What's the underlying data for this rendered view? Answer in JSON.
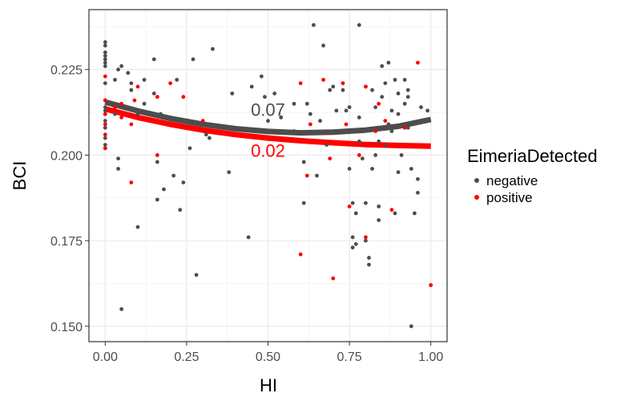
{
  "chart_data": {
    "type": "scatter",
    "xlabel": "HI",
    "ylabel": "BCI",
    "xlim": [
      -0.05,
      1.05
    ],
    "ylim": [
      0.1455,
      0.2425
    ],
    "xticks": [
      {
        "value": 0,
        "label": "0.00"
      },
      {
        "value": 0.25,
        "label": "0.25"
      },
      {
        "value": 0.5,
        "label": "0.50"
      },
      {
        "value": 0.75,
        "label": "0.75"
      },
      {
        "value": 1,
        "label": "1.00"
      }
    ],
    "yticks": [
      {
        "value": 0.15,
        "label": "0.150"
      },
      {
        "value": 0.175,
        "label": "0.175"
      },
      {
        "value": 0.2,
        "label": "0.200"
      },
      {
        "value": 0.225,
        "label": "0.225"
      }
    ],
    "grid": true,
    "legend": {
      "title": "EimeriaDetected",
      "placement": "right"
    },
    "colors": {
      "negative": "#4d4d4d",
      "positive": "#ff0000"
    },
    "series": [
      {
        "name": "negative",
        "points": [
          [
            0,
            0.233
          ],
          [
            0,
            0.232
          ],
          [
            0,
            0.23
          ],
          [
            0,
            0.229
          ],
          [
            0,
            0.228
          ],
          [
            0,
            0.227
          ],
          [
            0,
            0.226
          ],
          [
            0,
            0.221
          ],
          [
            0,
            0.216
          ],
          [
            0,
            0.214
          ],
          [
            0,
            0.213
          ],
          [
            0,
            0.212
          ],
          [
            0,
            0.21
          ],
          [
            0,
            0.208
          ],
          [
            0,
            0.205
          ],
          [
            0,
            0.203
          ],
          [
            0,
            0.202
          ],
          [
            0.02,
            0.215
          ],
          [
            0.03,
            0.212
          ],
          [
            0.03,
            0.222
          ],
          [
            0.04,
            0.225
          ],
          [
            0.04,
            0.199
          ],
          [
            0.04,
            0.196
          ],
          [
            0.05,
            0.226
          ],
          [
            0.05,
            0.155
          ],
          [
            0.07,
            0.224
          ],
          [
            0.08,
            0.219
          ],
          [
            0.08,
            0.221
          ],
          [
            0.09,
            0.213
          ],
          [
            0.1,
            0.212
          ],
          [
            0.1,
            0.179
          ],
          [
            0.12,
            0.222
          ],
          [
            0.12,
            0.215
          ],
          [
            0.15,
            0.228
          ],
          [
            0.15,
            0.218
          ],
          [
            0.16,
            0.187
          ],
          [
            0.16,
            0.198
          ],
          [
            0.17,
            0.212
          ],
          [
            0.18,
            0.19
          ],
          [
            0.21,
            0.194
          ],
          [
            0.22,
            0.222
          ],
          [
            0.23,
            0.184
          ],
          [
            0.24,
            0.192
          ],
          [
            0.26,
            0.202
          ],
          [
            0.27,
            0.228
          ],
          [
            0.28,
            0.165
          ],
          [
            0.31,
            0.206
          ],
          [
            0.32,
            0.205
          ],
          [
            0.33,
            0.231
          ],
          [
            0.38,
            0.195
          ],
          [
            0.39,
            0.218
          ],
          [
            0.44,
            0.176
          ],
          [
            0.45,
            0.22
          ],
          [
            0.48,
            0.223
          ],
          [
            0.49,
            0.217
          ],
          [
            0.5,
            0.21
          ],
          [
            0.52,
            0.218
          ],
          [
            0.54,
            0.211
          ],
          [
            0.58,
            0.215
          ],
          [
            0.58,
            0.207
          ],
          [
            0.61,
            0.198
          ],
          [
            0.61,
            0.186
          ],
          [
            0.62,
            0.215
          ],
          [
            0.63,
            0.212
          ],
          [
            0.64,
            0.238
          ],
          [
            0.65,
            0.194
          ],
          [
            0.66,
            0.21
          ],
          [
            0.67,
            0.232
          ],
          [
            0.68,
            0.203
          ],
          [
            0.69,
            0.219
          ],
          [
            0.7,
            0.22
          ],
          [
            0.71,
            0.213
          ],
          [
            0.73,
            0.219
          ],
          [
            0.75,
            0.214
          ],
          [
            0.75,
            0.196
          ],
          [
            0.76,
            0.186
          ],
          [
            0.76,
            0.176
          ],
          [
            0.76,
            0.173
          ],
          [
            0.77,
            0.183
          ],
          [
            0.77,
            0.174
          ],
          [
            0.78,
            0.211
          ],
          [
            0.78,
            0.204
          ],
          [
            0.79,
            0.199
          ],
          [
            0.8,
            0.22
          ],
          [
            0.8,
            0.186
          ],
          [
            0.8,
            0.175
          ],
          [
            0.81,
            0.17
          ],
          [
            0.81,
            0.168
          ],
          [
            0.82,
            0.219
          ],
          [
            0.82,
            0.196
          ],
          [
            0.83,
            0.214
          ],
          [
            0.83,
            0.2
          ],
          [
            0.84,
            0.204
          ],
          [
            0.84,
            0.185
          ],
          [
            0.84,
            0.181
          ],
          [
            0.85,
            0.226
          ],
          [
            0.85,
            0.217
          ],
          [
            0.86,
            0.221
          ],
          [
            0.87,
            0.227
          ],
          [
            0.88,
            0.213
          ],
          [
            0.88,
            0.207
          ],
          [
            0.89,
            0.222
          ],
          [
            0.89,
            0.183
          ],
          [
            0.9,
            0.218
          ],
          [
            0.9,
            0.212
          ],
          [
            0.9,
            0.195
          ],
          [
            0.91,
            0.2
          ],
          [
            0.92,
            0.215
          ],
          [
            0.93,
            0.219
          ],
          [
            0.93,
            0.208
          ],
          [
            0.94,
            0.196
          ],
          [
            0.94,
            0.15
          ],
          [
            0.95,
            0.183
          ],
          [
            0.96,
            0.189
          ],
          [
            0.96,
            0.193
          ],
          [
            0.97,
            0.214
          ],
          [
            0.99,
            0.213
          ],
          [
            0.78,
            0.238
          ],
          [
            0.87,
            0.209
          ],
          [
            0.92,
            0.222
          ],
          [
            0.74,
            0.213
          ],
          [
            0.86,
            0.203
          ],
          [
            0.93,
            0.217
          ]
        ]
      },
      {
        "name": "positive",
        "points": [
          [
            0,
            0.223
          ],
          [
            0,
            0.216
          ],
          [
            0,
            0.212
          ],
          [
            0,
            0.209
          ],
          [
            0,
            0.206
          ],
          [
            0,
            0.202
          ],
          [
            0.03,
            0.214
          ],
          [
            0.05,
            0.215
          ],
          [
            0.05,
            0.211
          ],
          [
            0.08,
            0.192
          ],
          [
            0.08,
            0.209
          ],
          [
            0.09,
            0.216
          ],
          [
            0.1,
            0.22
          ],
          [
            0.16,
            0.217
          ],
          [
            0.16,
            0.2
          ],
          [
            0.2,
            0.221
          ],
          [
            0.24,
            0.217
          ],
          [
            0.3,
            0.21
          ],
          [
            0.6,
            0.221
          ],
          [
            0.6,
            0.171
          ],
          [
            0.62,
            0.194
          ],
          [
            0.63,
            0.209
          ],
          [
            0.67,
            0.222
          ],
          [
            0.69,
            0.199
          ],
          [
            0.7,
            0.164
          ],
          [
            0.73,
            0.221
          ],
          [
            0.74,
            0.209
          ],
          [
            0.75,
            0.185
          ],
          [
            0.78,
            0.2
          ],
          [
            0.8,
            0.22
          ],
          [
            0.8,
            0.176
          ],
          [
            0.83,
            0.207
          ],
          [
            0.84,
            0.215
          ],
          [
            0.86,
            0.21
          ],
          [
            0.88,
            0.184
          ],
          [
            0.92,
            0.208
          ],
          [
            0.96,
            0.227
          ],
          [
            1,
            0.162
          ]
        ]
      }
    ],
    "fits": [
      {
        "name": "negative",
        "curve": [
          [
            0,
            0.2155
          ],
          [
            0.1,
            0.2129
          ],
          [
            0.2,
            0.2107
          ],
          [
            0.3,
            0.209
          ],
          [
            0.4,
            0.2077
          ],
          [
            0.5,
            0.2069
          ],
          [
            0.6,
            0.2065
          ],
          [
            0.7,
            0.2067
          ],
          [
            0.8,
            0.2073
          ],
          [
            0.9,
            0.2084
          ],
          [
            1,
            0.2104
          ]
        ]
      },
      {
        "name": "positive",
        "curve": [
          [
            0,
            0.2135
          ],
          [
            0.1,
            0.211
          ],
          [
            0.2,
            0.209
          ],
          [
            0.3,
            0.2073
          ],
          [
            0.4,
            0.206
          ],
          [
            0.5,
            0.205
          ],
          [
            0.6,
            0.2042
          ],
          [
            0.7,
            0.2036
          ],
          [
            0.8,
            0.2031
          ],
          [
            0.9,
            0.2028
          ],
          [
            1,
            0.2026
          ]
        ]
      }
    ],
    "annotations": [
      {
        "text": "0.07",
        "series": "negative",
        "x": 0.5,
        "y": 0.2115
      },
      {
        "text": "0.02",
        "series": "positive",
        "x": 0.5,
        "y": 0.1995
      }
    ]
  }
}
